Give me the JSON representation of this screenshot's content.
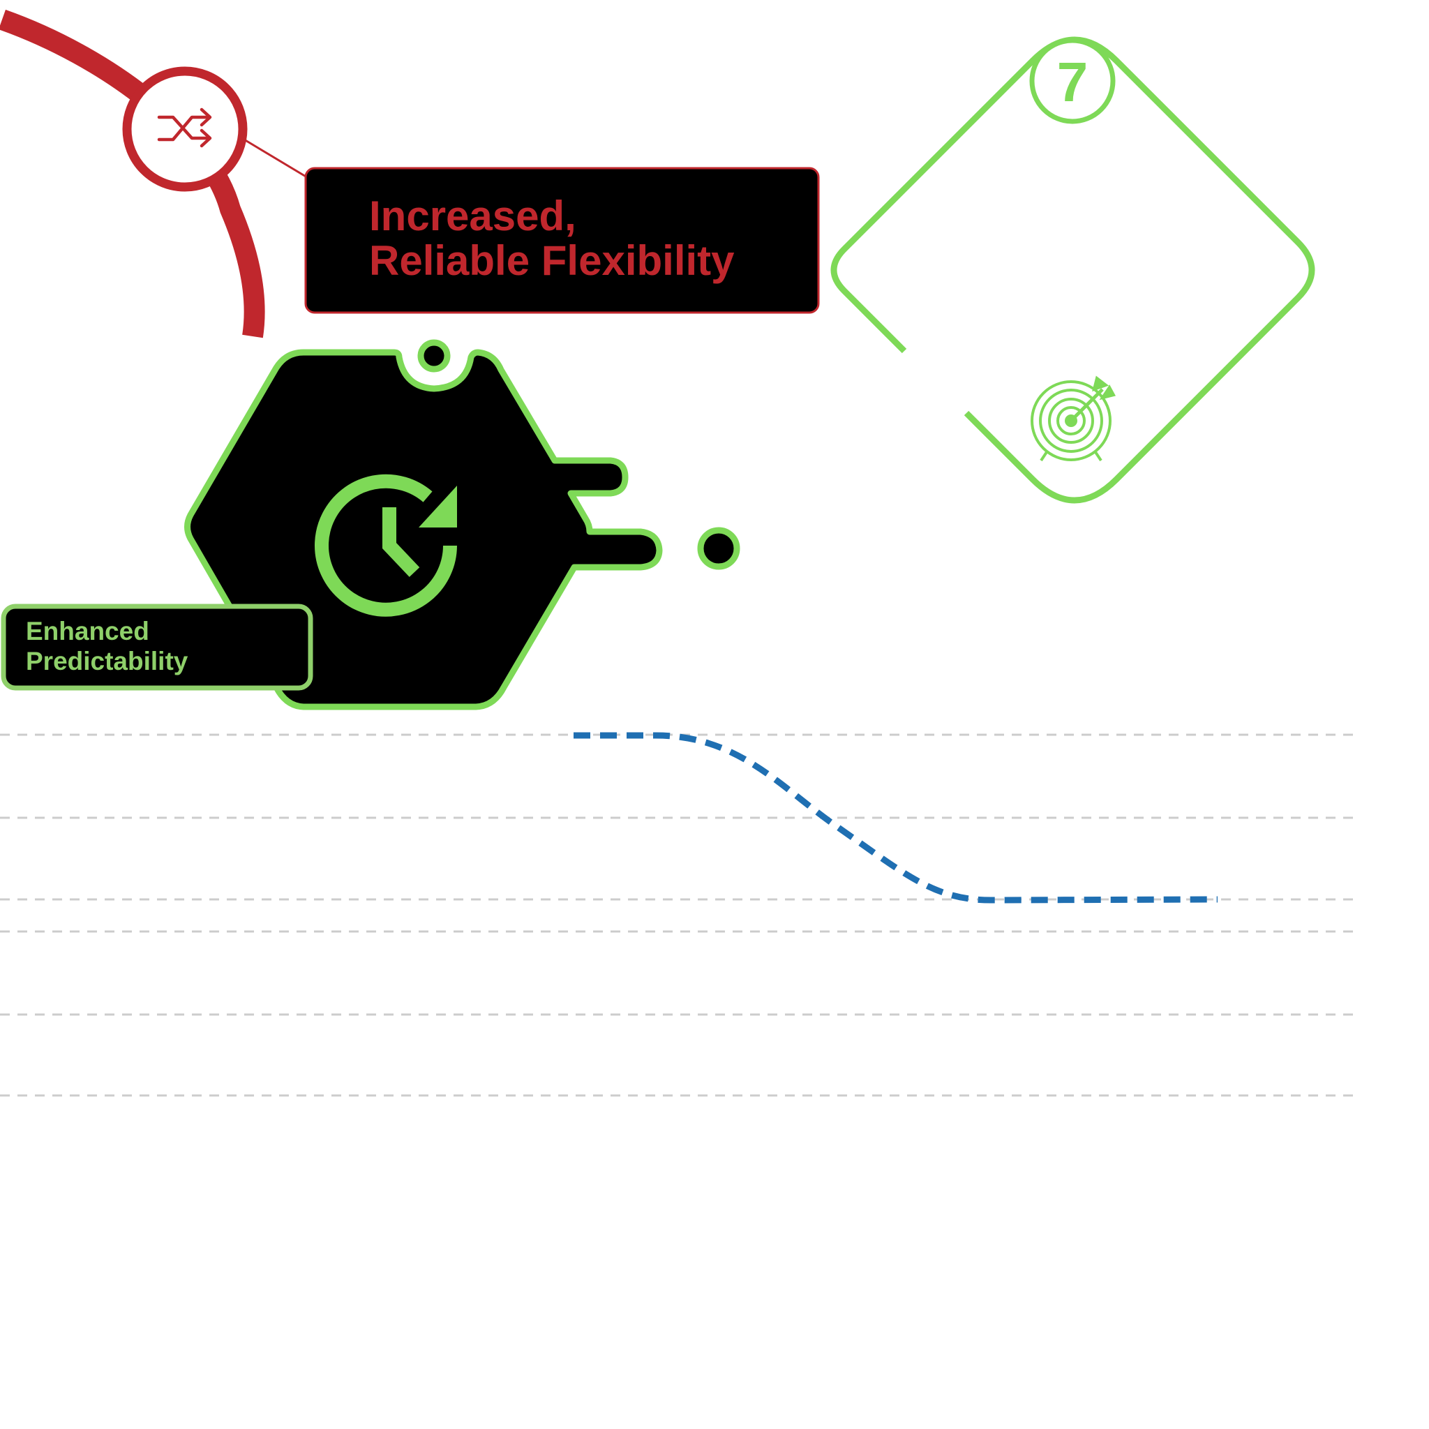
{
  "colors": {
    "red": "#c0272d",
    "green": "#7ed957",
    "green_text": "#8fd06a",
    "black": "#000000",
    "blue": "#1f6fb2",
    "grid": "#cccccc",
    "white": "#ffffff"
  },
  "flexibility": {
    "line1": "Increased,",
    "line2": "Reliable Flexibility",
    "icon": "shuffle-icon"
  },
  "predictability": {
    "line1": "Enhanced",
    "line2": "Predictability",
    "icon": "clock-refresh-icon"
  },
  "step": {
    "number": "7",
    "icon": "target-icon"
  }
}
